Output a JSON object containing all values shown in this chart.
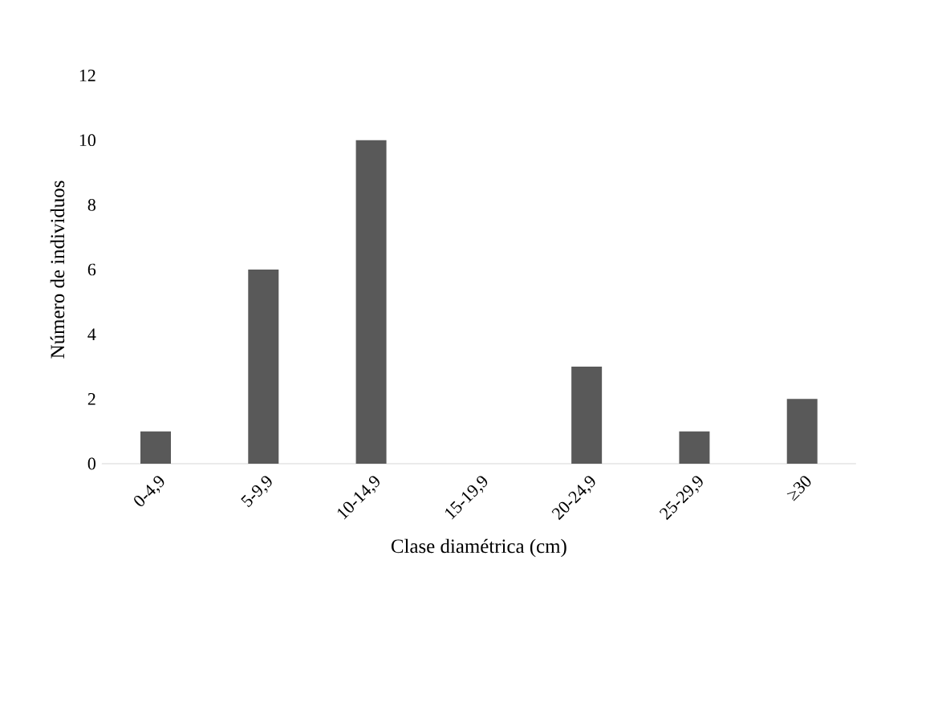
{
  "chart_data": {
    "type": "bar",
    "xlabel": "Clase diamétrica  (cm)",
    "ylabel": "Número de individuos",
    "categories": [
      "0-4,9",
      "5-9,9",
      "10-14,9",
      "15-19,9",
      "20-24,9",
      "25-29,9",
      "≥30"
    ],
    "values": [
      1,
      6,
      10,
      0,
      3,
      1,
      2
    ],
    "color": "#595959",
    "ylim": [
      0,
      12
    ],
    "yticks": [
      0,
      2,
      4,
      6,
      8,
      10,
      12
    ]
  }
}
